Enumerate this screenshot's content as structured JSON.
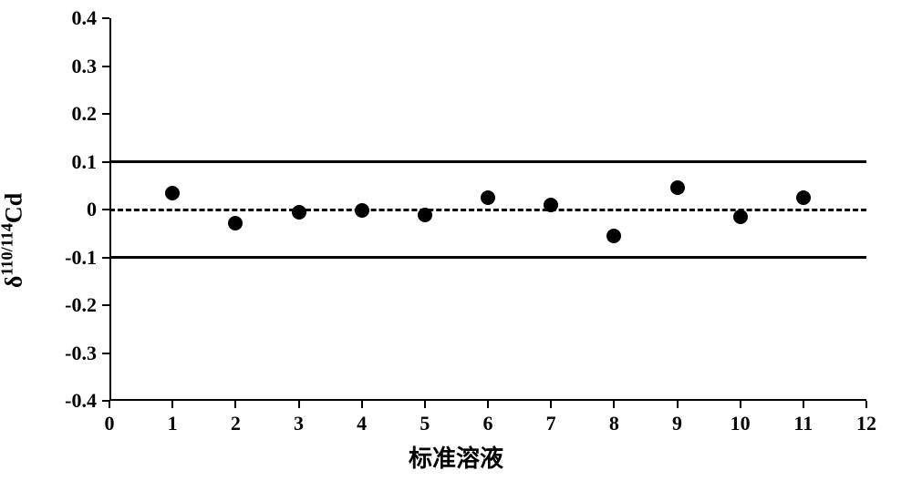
{
  "chart": {
    "type": "scatter",
    "background_color": "#ffffff",
    "xlabel": "标准溶液",
    "ylabel_prefix": "δ",
    "ylabel_sup": "110/114",
    "ylabel_suffix": "Cd",
    "label_fontsize": 26,
    "tick_fontsize": 22,
    "font_weight": "bold",
    "axis_color": "#000000",
    "xlim": [
      0,
      12
    ],
    "ylim": [
      -0.4,
      0.4
    ],
    "xticks": [
      0,
      1,
      2,
      3,
      4,
      5,
      6,
      7,
      8,
      9,
      10,
      11,
      12
    ],
    "yticks": [
      -0.4,
      -0.3,
      -0.2,
      -0.1,
      0,
      0.1,
      0.2,
      0.3,
      0.4
    ],
    "hlines": [
      {
        "y": 0.1,
        "style": "solid",
        "color": "#000000",
        "width": 3
      },
      {
        "y": 0.0,
        "style": "dashed",
        "color": "#000000",
        "width": 3
      },
      {
        "y": -0.1,
        "style": "solid",
        "color": "#000000",
        "width": 3
      }
    ],
    "marker": {
      "shape": "circle",
      "size": 16,
      "color": "#000000"
    },
    "points": [
      {
        "x": 1,
        "y": 0.035
      },
      {
        "x": 2,
        "y": -0.028
      },
      {
        "x": 3,
        "y": -0.005
      },
      {
        "x": 4,
        "y": -0.002
      },
      {
        "x": 5,
        "y": -0.012
      },
      {
        "x": 6,
        "y": 0.025
      },
      {
        "x": 7,
        "y": 0.01
      },
      {
        "x": 8,
        "y": -0.055
      },
      {
        "x": 9,
        "y": 0.045
      },
      {
        "x": 10,
        "y": -0.015
      },
      {
        "x": 11,
        "y": 0.025
      }
    ]
  }
}
